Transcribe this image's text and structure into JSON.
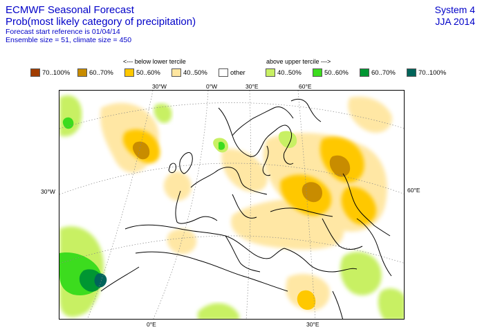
{
  "header": {
    "title": "ECMWF Seasonal Forecast",
    "subtitle": "Prob(most likely category of precipitation)",
    "forecast_start": "Forecast start reference is 01/04/14",
    "ensemble": "Ensemble size = 51, climate size = 450",
    "system": "System 4",
    "season": "JJA 2014"
  },
  "legend": {
    "below_heading": "<--- below lower tercile",
    "above_heading": "above upper tercile --->",
    "items": [
      {
        "label": "70..100%",
        "color": "#a03c00"
      },
      {
        "label": "60..70%",
        "color": "#c88c00"
      },
      {
        "label": "50..60%",
        "color": "#ffc800"
      },
      {
        "label": "40..50%",
        "color": "#ffe6a0"
      },
      {
        "label": "other",
        "color": "#ffffff"
      },
      {
        "label": "40..50%",
        "color": "#c8f064"
      },
      {
        "label": "50..60%",
        "color": "#3cdc1e"
      },
      {
        "label": "60..70%",
        "color": "#009632"
      },
      {
        "label": "70..100%",
        "color": "#00645a"
      }
    ]
  },
  "map": {
    "lon_labels_top": [
      "30°W",
      "0°W",
      "30°E",
      "60°E"
    ],
    "lat_labels": [
      "30°W",
      "60°E"
    ],
    "lon_labels_bottom": [
      "0°E",
      "30°E"
    ]
  }
}
